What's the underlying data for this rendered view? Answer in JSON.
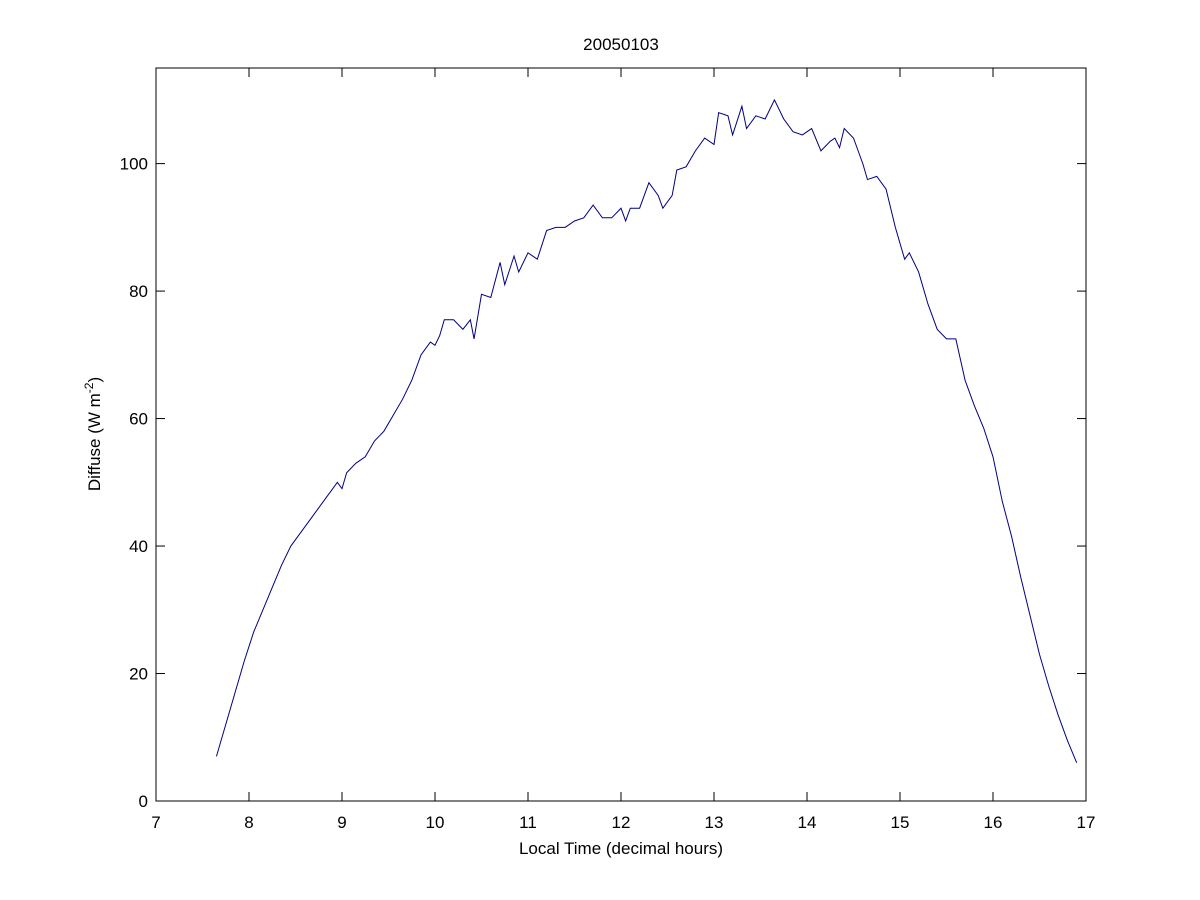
{
  "chart_data": {
    "type": "line",
    "title": "20050103",
    "xlabel": "Local Time (decimal hours)",
    "ylabel_parts": [
      "Diffuse (W m",
      "-2",
      ")"
    ],
    "xlim": [
      7,
      17
    ],
    "xticks": [
      7,
      8,
      9,
      10,
      11,
      12,
      13,
      14,
      15,
      16,
      17
    ],
    "ylim": [
      0,
      115
    ],
    "yticks": [
      0,
      20,
      40,
      60,
      80,
      100
    ],
    "grid": false,
    "series": [
      {
        "name": "Diffuse",
        "color": "#00007f",
        "x": [
          7.65,
          7.75,
          7.85,
          7.95,
          8.05,
          8.15,
          8.25,
          8.35,
          8.45,
          8.55,
          8.65,
          8.75,
          8.85,
          8.95,
          9.0,
          9.05,
          9.15,
          9.25,
          9.35,
          9.45,
          9.55,
          9.65,
          9.75,
          9.85,
          9.95,
          10.0,
          10.05,
          10.1,
          10.2,
          10.3,
          10.38,
          10.42,
          10.5,
          10.6,
          10.7,
          10.75,
          10.85,
          10.9,
          11.0,
          11.1,
          11.2,
          11.3,
          11.4,
          11.5,
          11.6,
          11.7,
          11.8,
          11.9,
          12.0,
          12.05,
          12.1,
          12.2,
          12.3,
          12.4,
          12.45,
          12.55,
          12.6,
          12.7,
          12.8,
          12.9,
          13.0,
          13.05,
          13.15,
          13.2,
          13.3,
          13.35,
          13.45,
          13.55,
          13.65,
          13.75,
          13.85,
          13.95,
          14.05,
          14.15,
          14.25,
          14.3,
          14.35,
          14.4,
          14.5,
          14.6,
          14.65,
          14.75,
          14.85,
          14.95,
          15.05,
          15.1,
          15.2,
          15.3,
          15.4,
          15.5,
          15.6,
          15.7,
          15.8,
          15.9,
          16.0,
          16.1,
          16.2,
          16.3,
          16.4,
          16.5,
          16.6,
          16.7,
          16.8,
          16.9
        ],
        "values": [
          7,
          12,
          17,
          22,
          26.5,
          30,
          33.5,
          37,
          40,
          42,
          44,
          46,
          48,
          50,
          49,
          51.5,
          53,
          54,
          56.5,
          58,
          60.5,
          63,
          66,
          70,
          72,
          71.5,
          73,
          75.5,
          75.5,
          74,
          75.5,
          72.5,
          79.5,
          79,
          84.5,
          81,
          85.5,
          83,
          86,
          85,
          89.5,
          90,
          90,
          91,
          91.5,
          93.5,
          91.5,
          91.5,
          93,
          91,
          93,
          93,
          97,
          95,
          93,
          95,
          99,
          99.5,
          102,
          104,
          103,
          108,
          107.5,
          104.5,
          109,
          105.5,
          107.5,
          107,
          110,
          107,
          105,
          104.5,
          105.5,
          102,
          103.5,
          104,
          102.5,
          105.5,
          104,
          100,
          97.5,
          98,
          96,
          90,
          85,
          86,
          83,
          78,
          74,
          72.5,
          72.5,
          66,
          62,
          58.5,
          54,
          47,
          41.5,
          35,
          29,
          23,
          18,
          13.5,
          9.5,
          6
        ]
      }
    ]
  }
}
